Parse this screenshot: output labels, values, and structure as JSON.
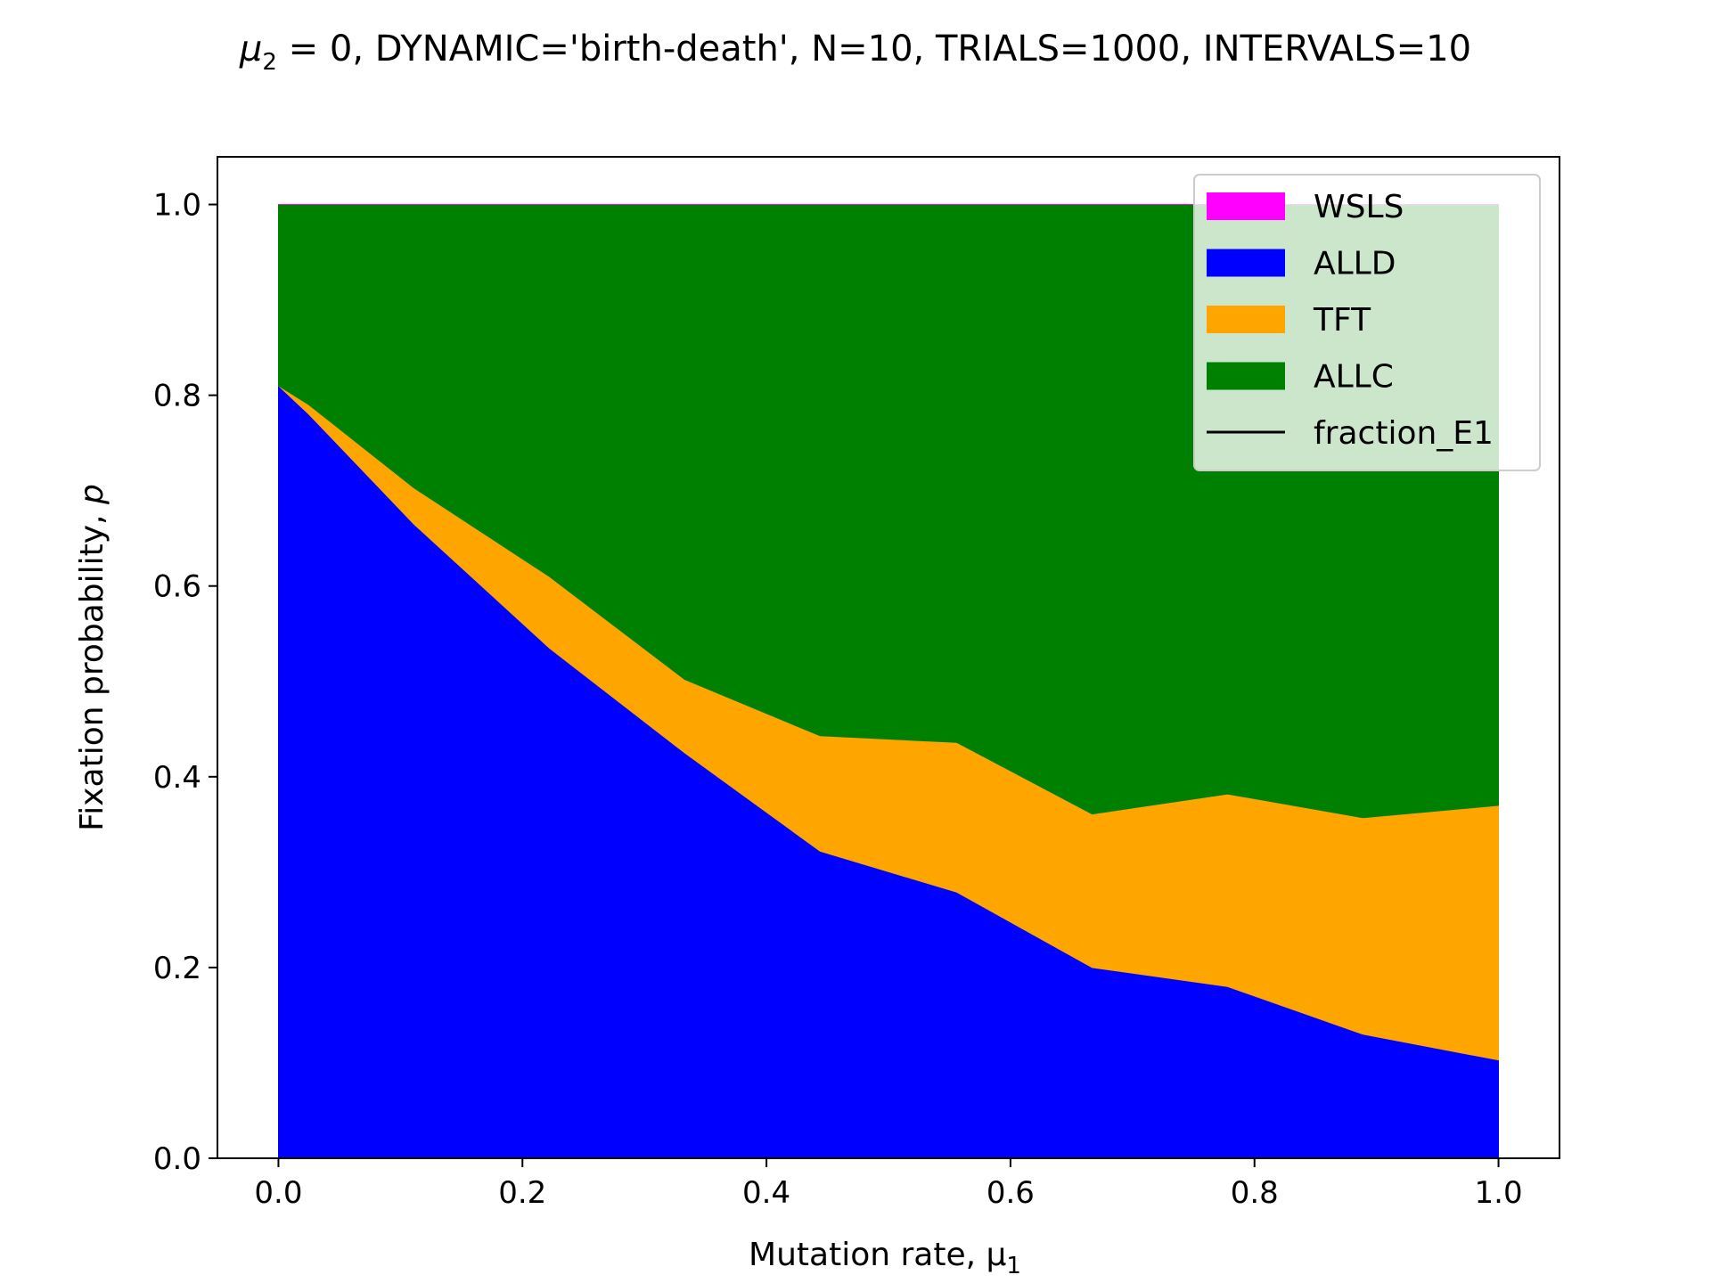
{
  "chart_data": {
    "type": "area",
    "stacked": true,
    "title": {
      "prefix": "μ",
      "sub": "2",
      "rest": " = 0, DYNAMIC='birth-death', N=10, TRIALS=1000, INTERVALS=10"
    },
    "xlabel": {
      "text": "Mutation rate, μ",
      "sub": "1"
    },
    "ylabel": {
      "text": "Fixation probability, ",
      "italic": "p"
    },
    "x": [
      0.0,
      0.025,
      0.111,
      0.222,
      0.333,
      0.444,
      0.556,
      0.667,
      0.778,
      0.889,
      1.0
    ],
    "series": [
      {
        "name": "ALLD",
        "color": "#0000ff",
        "values": [
          0.81,
          0.78,
          0.665,
          0.535,
          0.425,
          0.322,
          0.279,
          0.2,
          0.18,
          0.13,
          0.103
        ]
      },
      {
        "name": "TFT",
        "color": "#ffa500",
        "values": [
          0.0,
          0.01,
          0.038,
          0.075,
          0.077,
          0.121,
          0.157,
          0.161,
          0.202,
          0.227,
          0.267
        ]
      },
      {
        "name": "ALLC",
        "color": "#008000",
        "values": [
          0.19,
          0.21,
          0.297,
          0.39,
          0.498,
          0.557,
          0.564,
          0.639,
          0.618,
          0.643,
          0.63
        ]
      },
      {
        "name": "WSLS",
        "color": "#ff00ff",
        "values": [
          0,
          0,
          0,
          0,
          0,
          0,
          0,
          0,
          0,
          0,
          0
        ]
      }
    ],
    "line": {
      "name": "fraction_E1",
      "color": "#000000"
    },
    "legend": {
      "placement": "upper right",
      "entries": [
        {
          "label": "WSLS",
          "color": "#ff00ff",
          "kind": "patch"
        },
        {
          "label": "ALLD",
          "color": "#0000ff",
          "kind": "patch"
        },
        {
          "label": "TFT",
          "color": "#ffa500",
          "kind": "patch"
        },
        {
          "label": "ALLC",
          "color": "#008000",
          "kind": "patch"
        },
        {
          "label": "fraction_E1",
          "color": "#000000",
          "kind": "line"
        }
      ]
    },
    "xlim": [
      -0.05,
      1.05
    ],
    "ylim": [
      0.0,
      1.05
    ],
    "xticks": [
      "0.0",
      "0.2",
      "0.4",
      "0.6",
      "0.8",
      "1.0"
    ],
    "yticks": [
      "0.0",
      "0.2",
      "0.4",
      "0.6",
      "0.8",
      "1.0"
    ],
    "grid": false
  }
}
